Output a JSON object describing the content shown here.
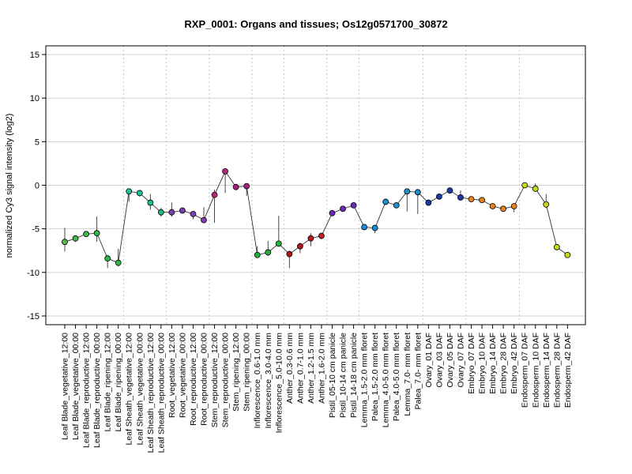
{
  "chart_data": {
    "type": "line",
    "title": "RXP_0001: Organs and tissues; Os12g0571700_30872",
    "ylabel": "normalized Cy3 signal intensity (log2)",
    "ylim": [
      -16,
      16
    ],
    "yticks": [
      -15,
      -10,
      -5,
      0,
      5,
      10,
      15
    ],
    "grid": true,
    "categories": [
      "Leaf Blade_vegetative_12:00",
      "Leaf Blade_vegetative_00:00",
      "Leaf Blade_reproductive_12:00",
      "Leaf Blade_reproductive_00:00",
      "Leaf Blade_ripening_12:00",
      "Leaf Blade_ripening_00:00",
      "Leaf Sheath_vegetative_12:00",
      "Leaf Sheath_vegetative_00:00",
      "Leaf Sheath_reproductive_12:00",
      "Leaf Sheath_reproductive_00:00",
      "Root_vegetative_12:00",
      "Root_vegetative_00:00",
      "Root_reproductive_12:00",
      "Root_reproductive_00:00",
      "Stem_reproductive_12:00",
      "Stem_reproductive_00:00",
      "Stem_ripening_12:00",
      "Stem_ripening_00:00",
      "Inflorescence_0.6-1.0 mm",
      "Inflorescence_3.0-4.0 mm",
      "Inflorescence_5.0-10.0 mm",
      "Anther_0.3-0.6 mm",
      "Anther_0.7-1.0 mm",
      "Anther_1.2-1.5 mm",
      "Anther_1.6-2.0 mm",
      "Pistil_05-10 cm panicle",
      "Pistil_10-14 cm panicle",
      "Pistil_14-18 cm panicle",
      "Lemma_1.5-2.0 mm floret",
      "Palea_1.5-2.0 mm floret",
      "Lemma_4.0-5.0 mm floret",
      "Palea_4.0-5.0 mm floret",
      "Lemma_7.0- mm floret",
      "Palea_7.0- mm floret",
      "Ovary_01 DAF",
      "Ovary_03 DAF",
      "Ovary_05 DAF",
      "Ovary_07 DAF",
      "Embryo_07 DAF",
      "Embryo_10 DAF",
      "Embryo_14 DAF",
      "Embryo_28 DAF",
      "Embryo_42 DAF",
      "Endosperm_07 DAF",
      "Endosperm_10 DAF",
      "Endosperm_14 DAF",
      "Endosperm_28 DAF",
      "Endosperm_42 DAF"
    ],
    "values": [
      -6.5,
      -6.1,
      -5.6,
      -5.5,
      -8.4,
      -8.9,
      -0.7,
      -0.9,
      -2.0,
      -3.1,
      -3.1,
      -2.9,
      -3.3,
      -4.0,
      -1.1,
      1.6,
      -0.2,
      -0.1,
      -8.0,
      -7.7,
      -6.7,
      -7.9,
      -7.0,
      -6.1,
      -5.8,
      -3.2,
      -2.7,
      -2.3,
      -4.8,
      -4.9,
      -1.9,
      -2.3,
      -0.7,
      -0.8,
      -2.0,
      -1.3,
      -0.6,
      -1.4,
      -1.6,
      -1.7,
      -2.4,
      -2.7,
      -2.4,
      0.0,
      -0.4,
      -2.2,
      -7.1,
      -8.0
    ],
    "error_low": [
      -7.6,
      -6.5,
      -5.8,
      -6.5,
      -9.5,
      -9.3,
      -1.9,
      -1.3,
      -2.8,
      -3.6,
      -3.6,
      -3.2,
      -3.9,
      -4.3,
      -4.3,
      -0.9,
      -0.4,
      -1.2,
      -8.3,
      -8.1,
      -7.0,
      -9.5,
      -7.8,
      -7.0,
      -6.2,
      -3.5,
      -3.0,
      -2.5,
      -5.0,
      -5.5,
      -2.1,
      -2.6,
      -3.0,
      -3.3,
      -2.2,
      -1.5,
      -0.8,
      -1.6,
      -1.8,
      -1.9,
      -2.6,
      -2.9,
      -3.1,
      -0.2,
      -0.7,
      -2.6,
      -7.4,
      -8.2
    ],
    "error_high": [
      -4.9,
      -5.8,
      -5.4,
      -3.6,
      -8.0,
      -7.3,
      -0.6,
      -0.6,
      -1.0,
      -2.6,
      -2.0,
      -2.6,
      -3.0,
      -2.5,
      -0.5,
      1.8,
      -0.1,
      0.1,
      -7.0,
      -6.4,
      -3.5,
      -7.5,
      -6.6,
      -5.5,
      -5.6,
      -2.9,
      -2.4,
      -2.2,
      -4.6,
      -4.6,
      -1.7,
      -2.0,
      -0.5,
      -0.6,
      -1.8,
      -1.1,
      -0.4,
      -0.6,
      -1.4,
      -1.5,
      -2.2,
      -2.5,
      -2.2,
      0.2,
      0.2,
      -1.0,
      -6.8,
      -7.8
    ],
    "colors": [
      "#56b84a",
      "#45b84a",
      "#3cb84a",
      "#35b84a",
      "#2fb84a",
      "#2ab84a",
      "#20c49a",
      "#20c49a",
      "#1fc090",
      "#1fbc88",
      "#7a3fb0",
      "#7a3fb0",
      "#7e3db0",
      "#7e3db0",
      "#b8287a",
      "#b8287a",
      "#a8207a",
      "#a8207a",
      "#1fb43c",
      "#1fb43c",
      "#1fb43c",
      "#b01414",
      "#b41818",
      "#b81c1c",
      "#bc2020",
      "#6a2ab8",
      "#6a2ab8",
      "#6a2ab8",
      "#1a8fd0",
      "#1a8fd0",
      "#1a8fd0",
      "#1a8fd0",
      "#1a8fd0",
      "#1a8fd0",
      "#1a3aa8",
      "#1a3aa8",
      "#1a3aa8",
      "#1a3aa8",
      "#e8821a",
      "#e8821a",
      "#e8821a",
      "#e8821a",
      "#e8821a",
      "#c8d81a",
      "#c8d81a",
      "#c8d81a",
      "#c8d81a",
      "#c8d81a"
    ],
    "group_separators_after": [
      5,
      9,
      13,
      17,
      20,
      24,
      27,
      33,
      37,
      42
    ]
  }
}
